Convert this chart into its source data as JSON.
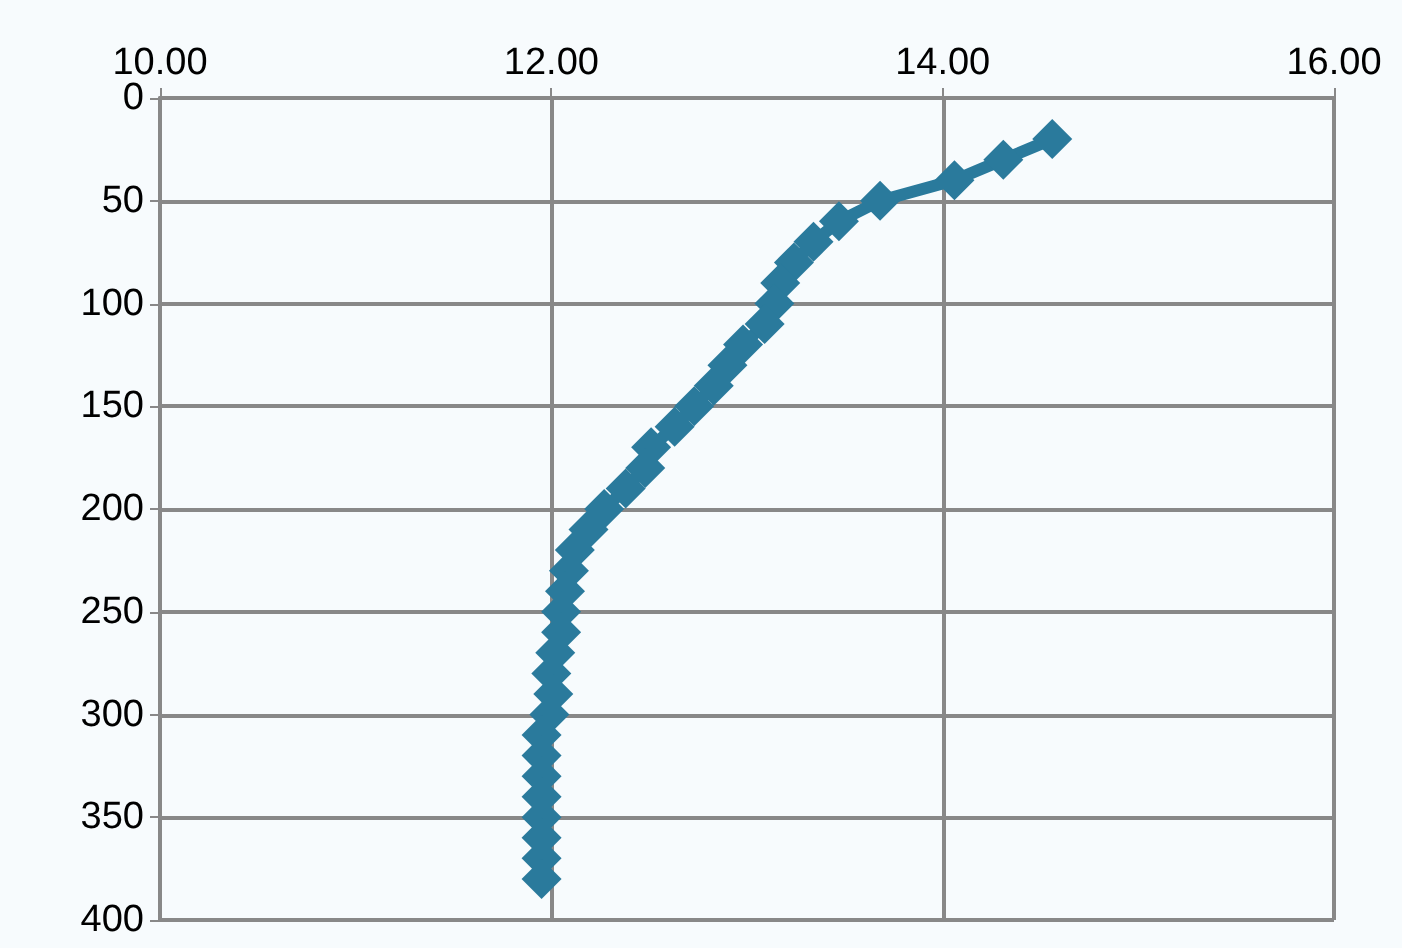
{
  "chart_data": {
    "type": "line",
    "marker": "diamond",
    "line_style": "solid",
    "grid": true,
    "x": [
      14.56,
      14.31,
      14.06,
      13.68,
      13.47,
      13.34,
      13.24,
      13.17,
      13.14,
      13.09,
      12.98,
      12.9,
      12.83,
      12.73,
      12.63,
      12.51,
      12.48,
      12.38,
      12.27,
      12.19,
      12.12,
      12.09,
      12.07,
      12.05,
      12.05,
      12.02,
      12.0,
      12.01,
      11.99,
      11.95,
      11.95,
      11.95,
      11.95,
      11.95,
      11.95,
      11.95,
      11.95
    ],
    "series": [
      {
        "color": "#2a7a9c",
        "values": [
          20,
          30,
          40,
          50,
          60,
          70,
          80,
          90,
          100,
          110,
          120,
          130,
          140,
          150,
          160,
          170,
          180,
          190,
          200,
          210,
          220,
          230,
          240,
          250,
          260,
          270,
          280,
          290,
          300,
          310,
          320,
          330,
          340,
          350,
          360,
          370,
          380
        ]
      }
    ],
    "xlim": [
      10,
      16
    ],
    "xticks": [
      {
        "value": 10,
        "label": "10.00"
      },
      {
        "value": 12,
        "label": "12.00"
      },
      {
        "value": 14,
        "label": "14.00"
      },
      {
        "value": 16,
        "label": "16.00"
      }
    ],
    "ylim": [
      400,
      0
    ],
    "yticks": [
      0,
      50,
      100,
      150,
      200,
      250,
      300,
      350,
      400
    ]
  }
}
